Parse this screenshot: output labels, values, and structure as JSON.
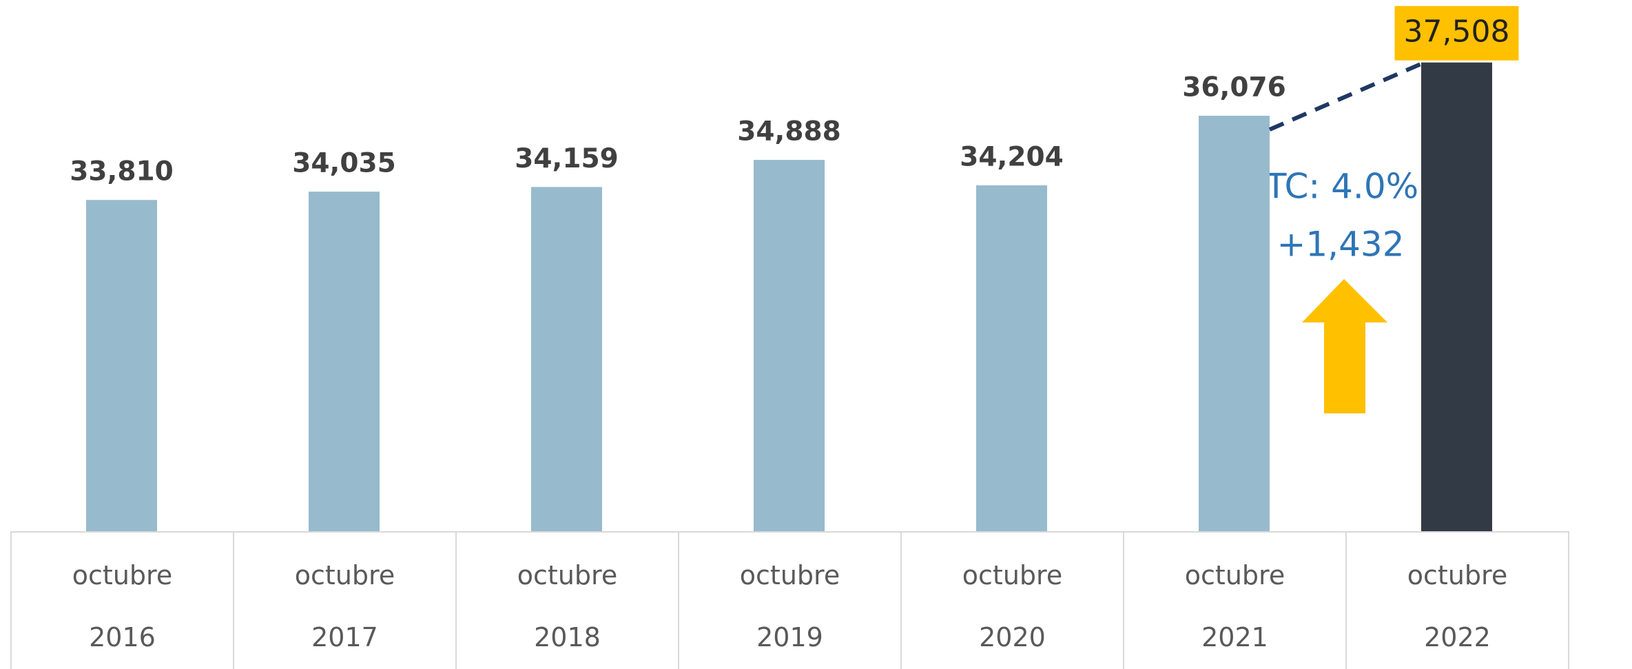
{
  "chart_data": {
    "type": "bar",
    "categories": [
      "octubre 2016",
      "octubre 2017",
      "octubre 2018",
      "octubre 2019",
      "octubre 2020",
      "octubre 2021",
      "octubre 2022"
    ],
    "values": [
      33810,
      34035,
      34159,
      34888,
      34204,
      36076,
      37508
    ],
    "value_labels": [
      "33,810",
      "34,035",
      "34,159",
      "34,888",
      "34,204",
      "36,076",
      "37,508"
    ],
    "colors": [
      "#98bacd",
      "#98bacd",
      "#98bacd",
      "#98bacd",
      "#98bacd",
      "#98bacd",
      "#323a45"
    ],
    "ylim": [
      24900,
      38800
    ],
    "annotations": [
      "TC: 4.0%",
      "+1,432"
    ]
  }
}
